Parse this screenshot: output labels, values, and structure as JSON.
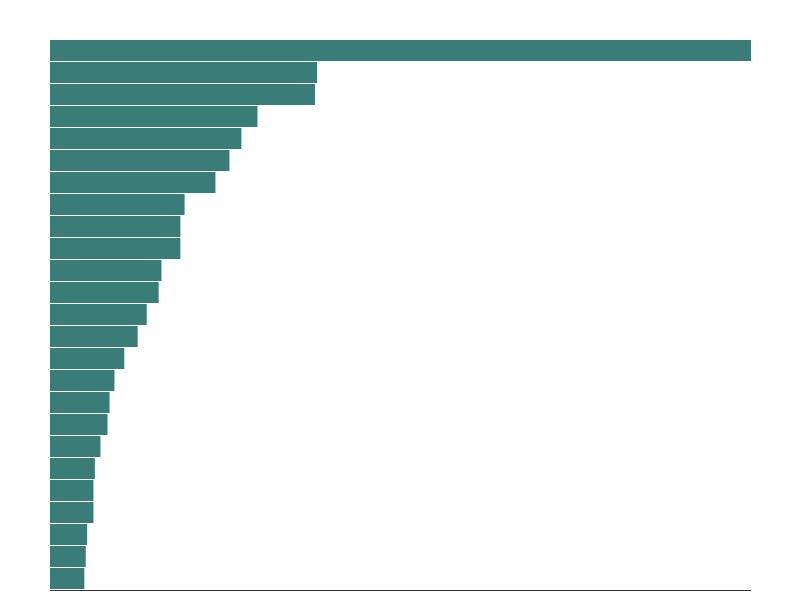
{
  "chart_data": {
    "type": "bar",
    "orientation": "horizontal",
    "title": "",
    "xlabel": "",
    "ylabel": "",
    "xlim": [
      0,
      100
    ],
    "grid": false,
    "legend": "none",
    "bar_color": "#3a7d78",
    "axis_color": "#333333",
    "values": [
      100,
      38.1,
      37.8,
      29.6,
      27.3,
      25.6,
      23.6,
      19.2,
      18.6,
      18.6,
      15.9,
      15.5,
      13.8,
      12.5,
      10.6,
      9.2,
      8.5,
      8.2,
      7.2,
      6.4,
      6.2,
      6.2,
      5.3,
      5.1,
      4.9
    ]
  }
}
